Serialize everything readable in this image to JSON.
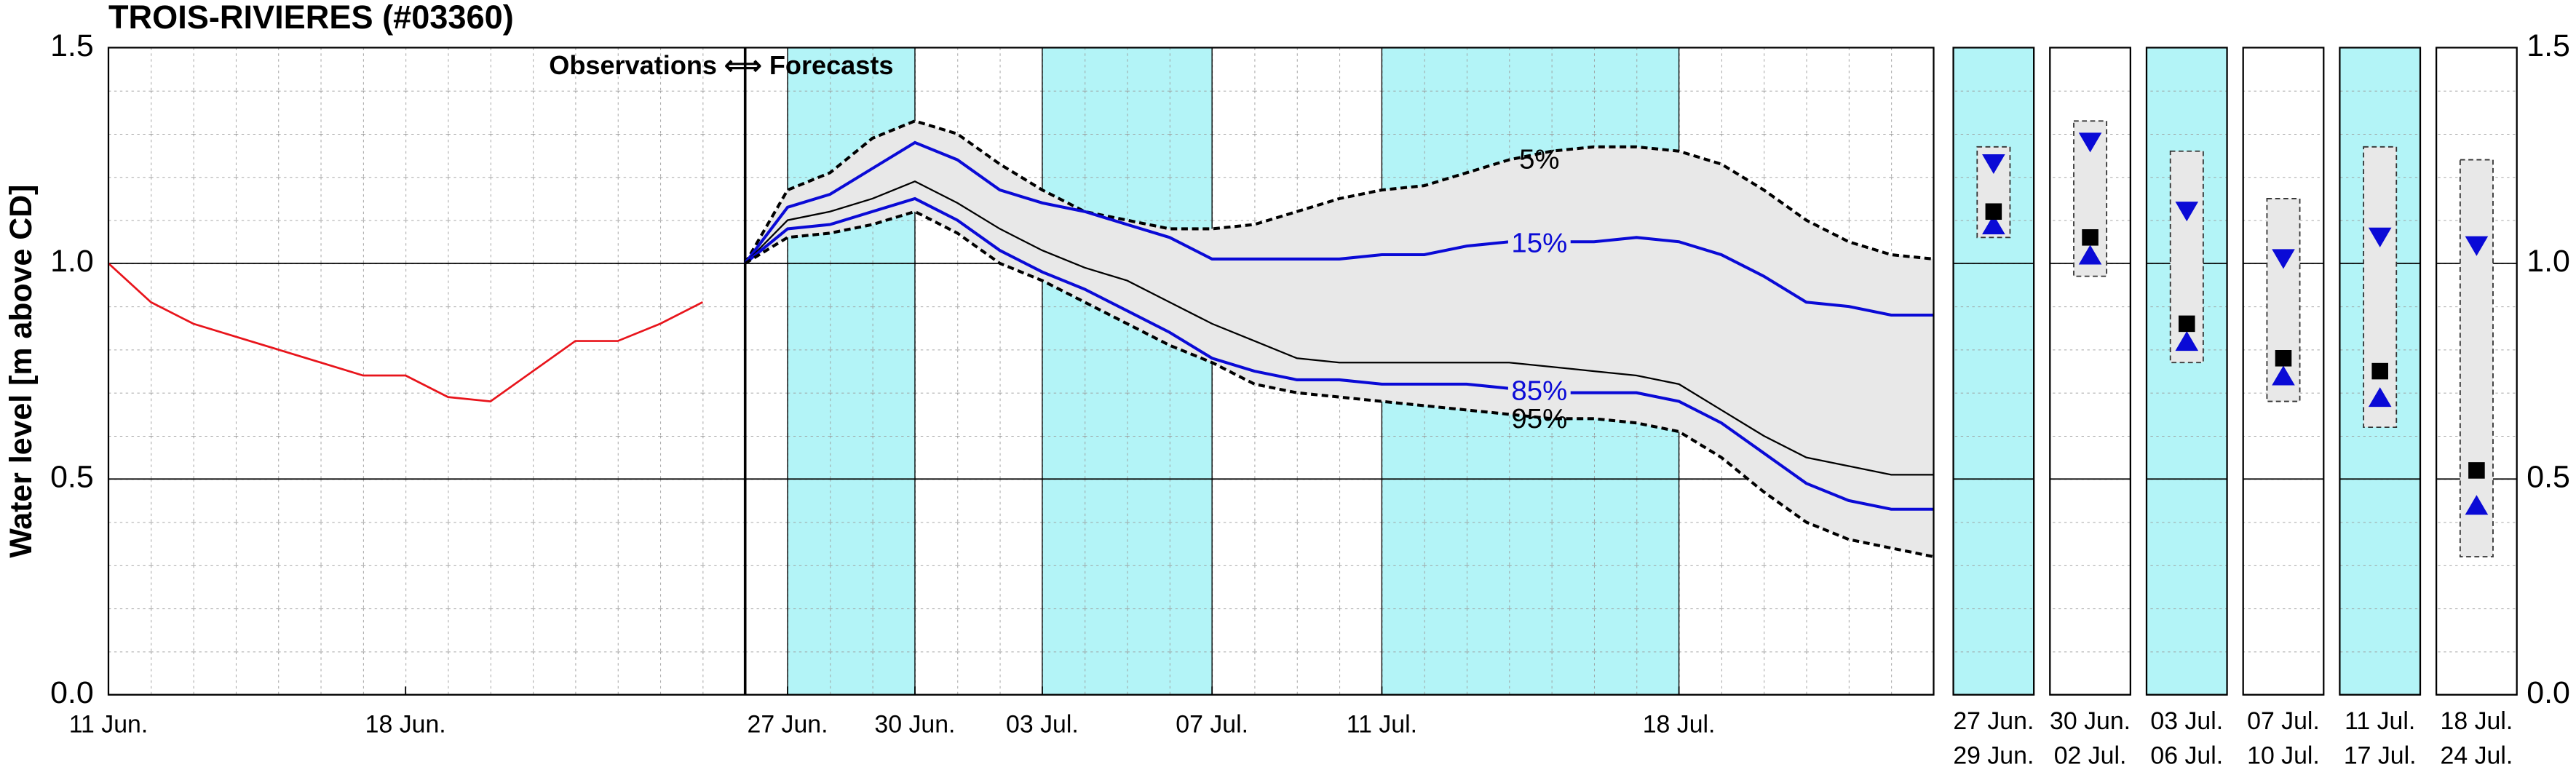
{
  "chart_data": [
    {
      "type": "line",
      "title": "TROIS-RIVIERES (#03360)",
      "ylabel": "Water level [m above CD]",
      "annotation": "Observations ⟺ Forecasts",
      "xlim": [
        11,
        54
      ],
      "xticks": [
        {
          "value": 11,
          "label": "11 Jun."
        },
        {
          "value": 18,
          "label": "18 Jun."
        },
        {
          "value": 27,
          "label": "27 Jun."
        },
        {
          "value": 30,
          "label": "30 Jun."
        },
        {
          "value": 33,
          "label": "03 Jul."
        },
        {
          "value": 37,
          "label": "07 Jul."
        },
        {
          "value": 41,
          "label": "11 Jul."
        },
        {
          "value": 48,
          "label": "18 Jul."
        }
      ],
      "ylim": [
        0,
        1.5
      ],
      "yticks": [
        {
          "value": 0,
          "label": "0.0"
        },
        0.5,
        {
          "value": 1,
          "label": "1.0"
        },
        1.5
      ],
      "grid": true,
      "bands": [
        [
          27,
          30
        ],
        [
          33,
          37
        ],
        [
          41,
          48
        ]
      ],
      "band_color": "#b3f4f7",
      "fill_color": "#e8e8e8",
      "observed": {
        "color": "#e8141b",
        "x": [
          11,
          12,
          13,
          14,
          15,
          16,
          17,
          18,
          19,
          20,
          21,
          22,
          23,
          24,
          25
        ],
        "values": [
          1.0,
          0.91,
          0.86,
          0.83,
          0.8,
          0.77,
          0.74,
          0.74,
          0.69,
          0.68,
          0.75,
          0.82,
          0.82,
          0.86,
          0.91
        ]
      },
      "x": [
        26,
        27,
        28,
        29,
        30,
        31,
        32,
        33,
        34,
        35,
        36,
        37,
        38,
        39,
        40,
        41,
        42,
        43,
        44,
        45,
        46,
        47,
        48,
        49,
        50,
        51,
        52,
        53,
        54
      ],
      "series": [
        {
          "name": "5%",
          "color": "#000000",
          "dash": true,
          "values": [
            1.0,
            1.17,
            1.21,
            1.29,
            1.33,
            1.3,
            1.23,
            1.17,
            1.12,
            1.1,
            1.08,
            1.08,
            1.09,
            1.12,
            1.15,
            1.17,
            1.18,
            1.21,
            1.24,
            1.26,
            1.27,
            1.27,
            1.26,
            1.23,
            1.17,
            1.1,
            1.05,
            1.02,
            1.01
          ]
        },
        {
          "name": "15%",
          "color": "#0a0ad6",
          "dash": false,
          "values": [
            1.0,
            1.13,
            1.16,
            1.22,
            1.28,
            1.24,
            1.17,
            1.14,
            1.12,
            1.09,
            1.06,
            1.01,
            1.01,
            1.01,
            1.01,
            1.02,
            1.02,
            1.04,
            1.05,
            1.05,
            1.05,
            1.06,
            1.05,
            1.02,
            0.97,
            0.91,
            0.9,
            0.88,
            0.88
          ]
        },
        {
          "color": "#000000",
          "dash": false,
          "values": [
            1.0,
            1.1,
            1.12,
            1.15,
            1.19,
            1.14,
            1.08,
            1.03,
            0.99,
            0.96,
            0.91,
            0.86,
            0.82,
            0.78,
            0.77,
            0.77,
            0.77,
            0.77,
            0.77,
            0.76,
            0.75,
            0.74,
            0.72,
            0.66,
            0.6,
            0.55,
            0.53,
            0.51,
            0.51
          ]
        },
        {
          "name": "85%",
          "color": "#0a0ad6",
          "dash": false,
          "values": [
            1.0,
            1.08,
            1.09,
            1.12,
            1.15,
            1.1,
            1.03,
            0.98,
            0.94,
            0.89,
            0.84,
            0.78,
            0.75,
            0.73,
            0.73,
            0.72,
            0.72,
            0.72,
            0.71,
            0.7,
            0.7,
            0.7,
            0.68,
            0.63,
            0.56,
            0.49,
            0.45,
            0.43,
            0.43
          ]
        },
        {
          "name": "95%",
          "color": "#000000",
          "dash": true,
          "values": [
            1.0,
            1.06,
            1.07,
            1.09,
            1.12,
            1.07,
            1.0,
            0.96,
            0.91,
            0.86,
            0.81,
            0.77,
            0.72,
            0.7,
            0.69,
            0.68,
            0.67,
            0.66,
            0.65,
            0.64,
            0.64,
            0.63,
            0.61,
            0.55,
            0.47,
            0.4,
            0.36,
            0.34,
            0.32
          ]
        }
      ]
    },
    {
      "type": "range",
      "ylim": [
        0,
        1.5
      ],
      "yticks": [
        {
          "value": 0,
          "label": "0.0"
        },
        0.5,
        {
          "value": 1,
          "label": "1.0"
        },
        1.5
      ],
      "band_color": "#b3f4f7",
      "fill_color": "#e8e8e8",
      "square_color": "#000000",
      "triangle_color": "#0a0ad6",
      "panels": [
        {
          "start": "27 Jun.",
          "end": "29 Jun.",
          "highlight": true,
          "low": 1.06,
          "high": 1.27,
          "down": 1.23,
          "square": 1.12,
          "up": 1.09
        },
        {
          "start": "30 Jun.",
          "end": "02 Jul.",
          "highlight": false,
          "low": 0.97,
          "high": 1.33,
          "down": 1.28,
          "square": 1.06,
          "up": 1.02
        },
        {
          "start": "03 Jul.",
          "end": "06 Jul.",
          "highlight": true,
          "low": 0.77,
          "high": 1.26,
          "down": 1.12,
          "square": 0.86,
          "up": 0.82
        },
        {
          "start": "07 Jul.",
          "end": "10 Jul.",
          "highlight": false,
          "low": 0.68,
          "high": 1.15,
          "down": 1.01,
          "square": 0.78,
          "up": 0.74
        },
        {
          "start": "11 Jul.",
          "end": "17 Jul.",
          "highlight": true,
          "low": 0.62,
          "high": 1.27,
          "down": 1.06,
          "square": 0.75,
          "up": 0.69
        },
        {
          "start": "18 Jul.",
          "end": "24 Jul.",
          "highlight": false,
          "low": 0.32,
          "high": 1.24,
          "down": 1.04,
          "square": 0.52,
          "up": 0.44
        }
      ]
    }
  ]
}
